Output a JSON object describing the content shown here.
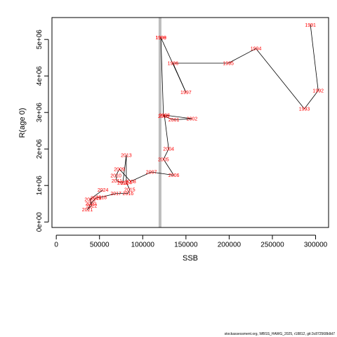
{
  "chart_data": {
    "type": "scatter",
    "title": "",
    "xlabel": "SSB",
    "ylabel": "R(age 0)",
    "xlim": [
      -5000,
      315000
    ],
    "ylim": [
      -150000,
      5600000
    ],
    "xticks": [
      0,
      50000,
      100000,
      150000,
      200000,
      250000,
      300000
    ],
    "xtick_labels": [
      "0",
      "50000",
      "100000",
      "150000",
      "200000",
      "250000",
      "300000"
    ],
    "yticks": [
      0,
      1000000,
      2000000,
      3000000,
      4000000,
      5000000
    ],
    "ytick_labels": [
      "0e+00",
      "1e+06",
      "2e+06",
      "3e+06",
      "4e+06",
      "5e+06"
    ],
    "reference_line": {
      "x": 120000,
      "color": "#bdbdbd"
    },
    "line_color": "#000000",
    "label_color": "#ff0000",
    "points": [
      {
        "year": "1991",
        "x": 294000,
        "y": 5400000
      },
      {
        "year": "1992",
        "x": 303000,
        "y": 3600000
      },
      {
        "year": "1993",
        "x": 287000,
        "y": 3100000
      },
      {
        "year": "1994",
        "x": 231000,
        "y": 4750000
      },
      {
        "year": "1995",
        "x": 199000,
        "y": 4350000
      },
      {
        "year": "1996",
        "x": 135000,
        "y": 4350000
      },
      {
        "year": "1997",
        "x": 150000,
        "y": 3550000
      },
      {
        "year": "1998",
        "x": 121000,
        "y": 5050000
      },
      {
        "year": "1999",
        "x": 121000,
        "y": 5050000
      },
      {
        "year": "2000",
        "x": 124000,
        "y": 2900000
      },
      {
        "year": "2001",
        "x": 136000,
        "y": 2800000
      },
      {
        "year": "2002",
        "x": 157000,
        "y": 2830000
      },
      {
        "year": "2003",
        "x": 125000,
        "y": 2930000
      },
      {
        "year": "2004",
        "x": 130000,
        "y": 2000000
      },
      {
        "year": "2005",
        "x": 124000,
        "y": 1720000
      },
      {
        "year": "2006",
        "x": 136000,
        "y": 1280000
      },
      {
        "year": "2007",
        "x": 110000,
        "y": 1370000
      },
      {
        "year": "2008",
        "x": 86000,
        "y": 1110000
      },
      {
        "year": "2009",
        "x": 73000,
        "y": 1450000
      },
      {
        "year": "2010",
        "x": 69000,
        "y": 1270000
      },
      {
        "year": "2011",
        "x": 70000,
        "y": 1130000
      },
      {
        "year": "2012",
        "x": 77000,
        "y": 1070000
      },
      {
        "year": "2013",
        "x": 81000,
        "y": 1830000
      },
      {
        "year": "2014",
        "x": 81000,
        "y": 1080000
      },
      {
        "year": "2015",
        "x": 85000,
        "y": 890000
      },
      {
        "year": "2016",
        "x": 83000,
        "y": 780000
      },
      {
        "year": "2017",
        "x": 69000,
        "y": 780000
      },
      {
        "year": "2018",
        "x": 52000,
        "y": 680000
      },
      {
        "year": "2019",
        "x": 46000,
        "y": 660000
      },
      {
        "year": "2020",
        "x": 40000,
        "y": 500000
      },
      {
        "year": "2021",
        "x": 36000,
        "y": 340000
      },
      {
        "year": "2022",
        "x": 41000,
        "y": 450000
      },
      {
        "year": "2023",
        "x": 39000,
        "y": 620000
      },
      {
        "year": "2024",
        "x": 54000,
        "y": 880000
      }
    ]
  },
  "footer_text": "stockassessment.org, WBSS_HAWG_2025, r18812, git:3c872568b9d7"
}
